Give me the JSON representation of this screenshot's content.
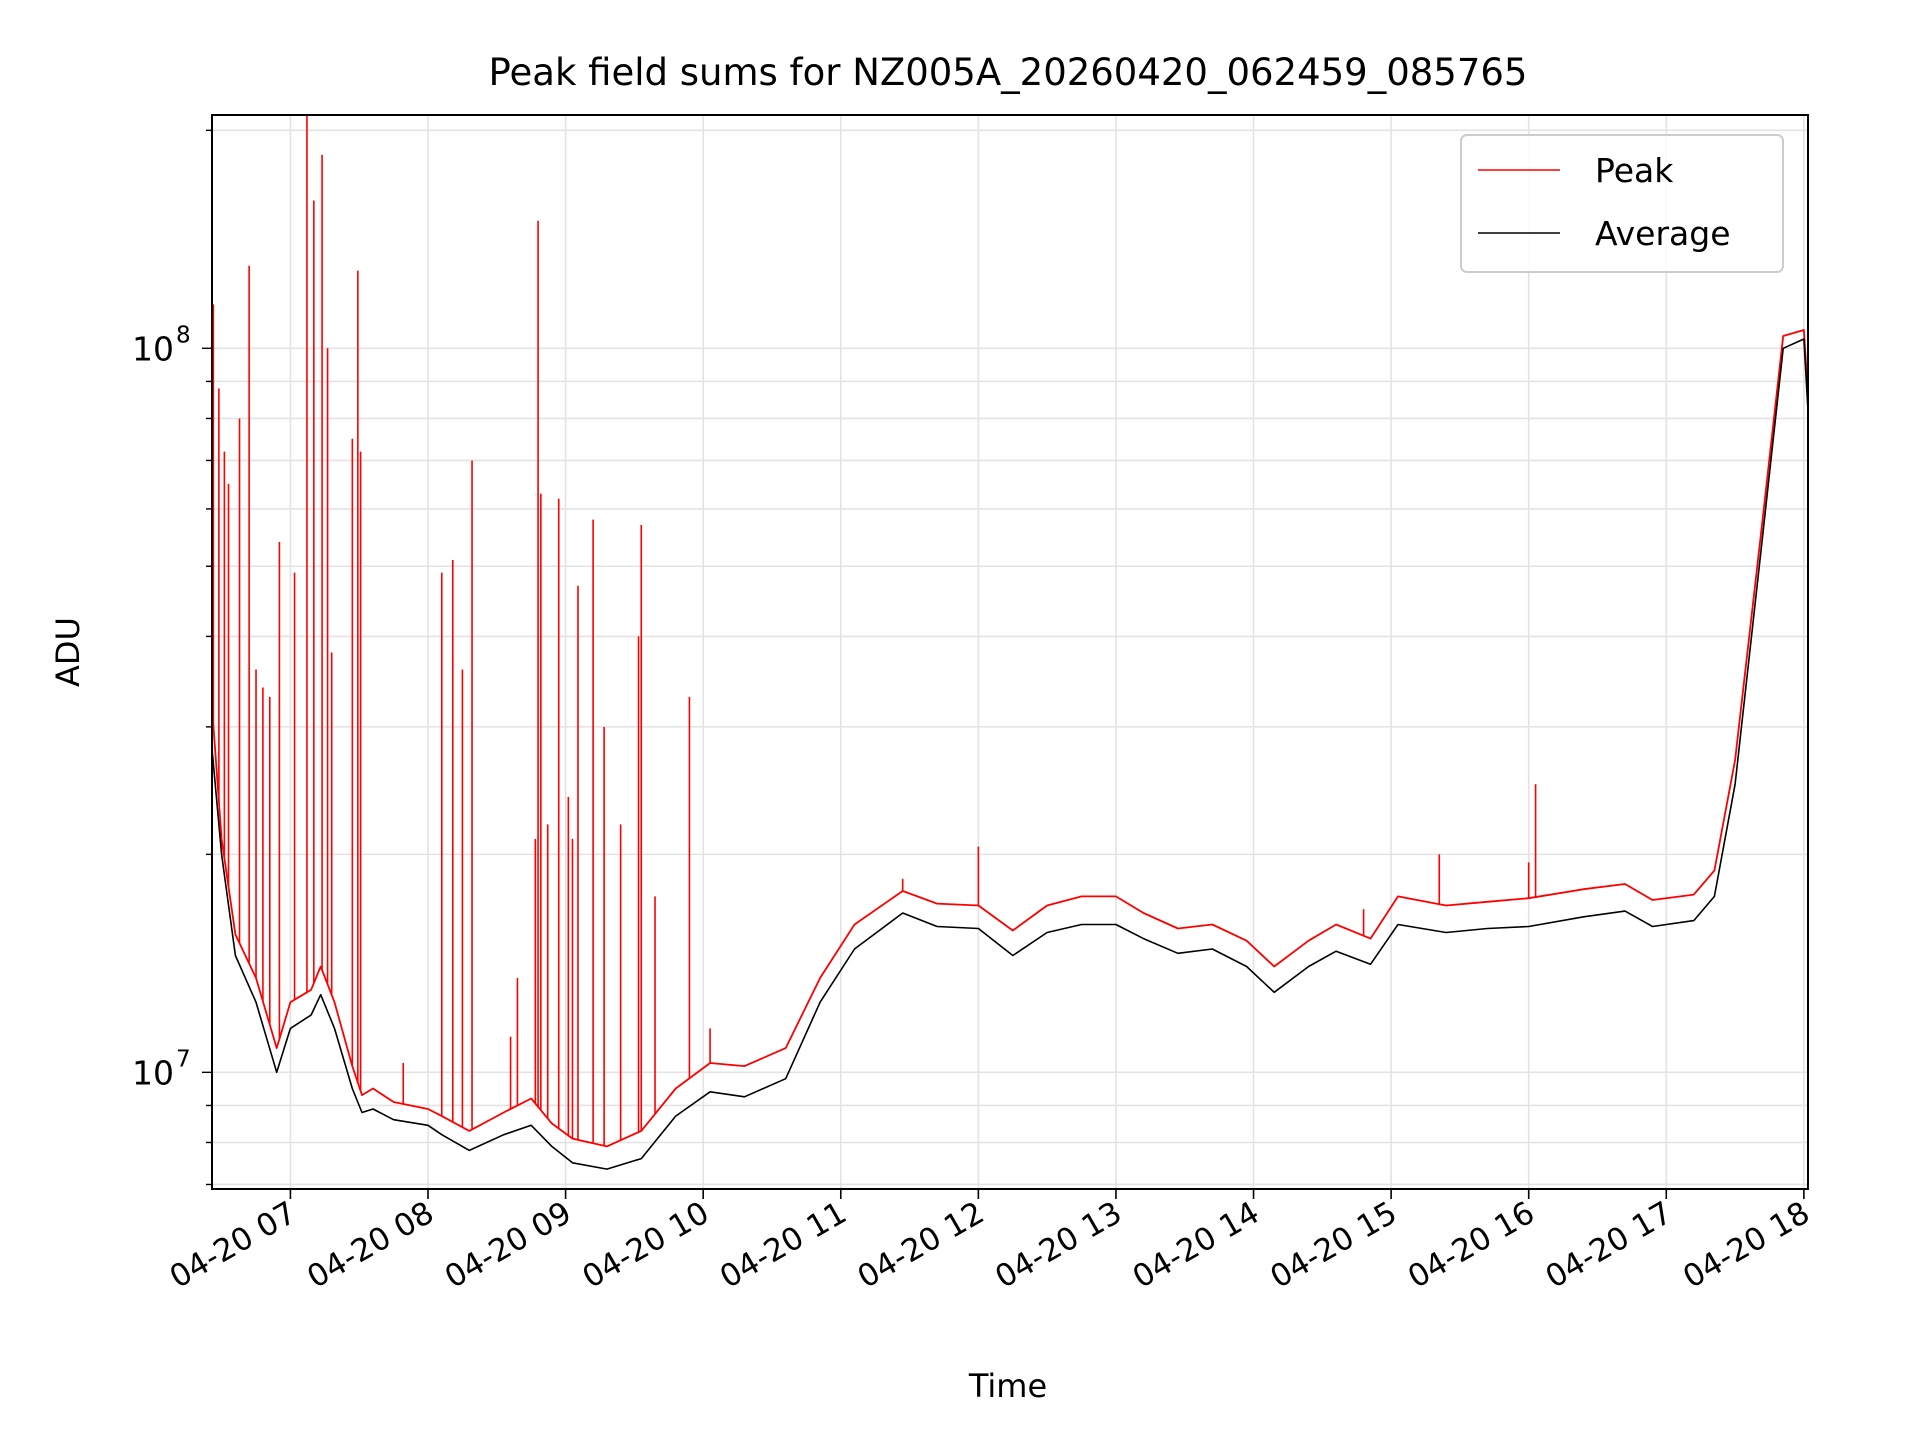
{
  "chart_data": {
    "type": "line",
    "title": "Peak field sums for NZ005A_20260420_062459_085765",
    "xlabel": "Time",
    "ylabel": "ADU",
    "yscale": "log",
    "ylim": [
      6900000,
      210000000
    ],
    "xlim_hours": [
      6.43,
      18.03
    ],
    "x_tick_labels": [
      "04-20 07",
      "04-20 08",
      "04-20 09",
      "04-20 10",
      "04-20 11",
      "04-20 12",
      "04-20 13",
      "04-20 14",
      "04-20 15",
      "04-20 16",
      "04-20 17",
      "04-20 18"
    ],
    "x_tick_hours": [
      7,
      8,
      9,
      10,
      11,
      12,
      13,
      14,
      15,
      16,
      17,
      18
    ],
    "y_tick_labels": [
      {
        "value": 10000000,
        "base": "10",
        "exp": "7"
      },
      {
        "value": 100000000,
        "base": "10",
        "exp": "8"
      }
    ],
    "grid": true,
    "legend_position": "top-right",
    "series": [
      {
        "name": "Average",
        "color": "#000000",
        "points": [
          [
            6.43,
            28000000
          ],
          [
            6.5,
            20000000
          ],
          [
            6.6,
            14500000
          ],
          [
            6.75,
            12500000
          ],
          [
            6.9,
            10000000
          ],
          [
            7.0,
            11500000
          ],
          [
            7.15,
            12000000
          ],
          [
            7.22,
            12800000
          ],
          [
            7.32,
            11500000
          ],
          [
            7.45,
            9500000
          ],
          [
            7.52,
            8800000
          ],
          [
            7.6,
            8900000
          ],
          [
            7.75,
            8600000
          ],
          [
            8.0,
            8450000
          ],
          [
            8.1,
            8200000
          ],
          [
            8.3,
            7800000
          ],
          [
            8.55,
            8200000
          ],
          [
            8.75,
            8450000
          ],
          [
            8.9,
            7900000
          ],
          [
            9.05,
            7500000
          ],
          [
            9.3,
            7350000
          ],
          [
            9.55,
            7600000
          ],
          [
            9.8,
            8700000
          ],
          [
            10.05,
            9400000
          ],
          [
            10.3,
            9250000
          ],
          [
            10.6,
            9800000
          ],
          [
            10.85,
            12500000
          ],
          [
            11.1,
            14800000
          ],
          [
            11.45,
            16600000
          ],
          [
            11.7,
            15900000
          ],
          [
            12.0,
            15800000
          ],
          [
            12.25,
            14500000
          ],
          [
            12.5,
            15600000
          ],
          [
            12.75,
            16000000
          ],
          [
            13.0,
            16000000
          ],
          [
            13.2,
            15300000
          ],
          [
            13.45,
            14600000
          ],
          [
            13.7,
            14800000
          ],
          [
            13.95,
            14000000
          ],
          [
            14.15,
            12900000
          ],
          [
            14.4,
            14000000
          ],
          [
            14.6,
            14700000
          ],
          [
            14.85,
            14100000
          ],
          [
            15.05,
            16000000
          ],
          [
            15.4,
            15600000
          ],
          [
            15.7,
            15800000
          ],
          [
            16.0,
            15900000
          ],
          [
            16.4,
            16400000
          ],
          [
            16.7,
            16700000
          ],
          [
            16.9,
            15900000
          ],
          [
            17.2,
            16200000
          ],
          [
            17.35,
            17500000
          ],
          [
            17.5,
            25000000
          ],
          [
            17.7,
            55000000
          ],
          [
            17.85,
            100000000
          ],
          [
            18.0,
            103000000
          ],
          [
            18.03,
            82000000
          ]
        ]
      },
      {
        "name": "Peak",
        "color": "#ff0000",
        "points": [
          [
            6.43,
            32000000
          ],
          [
            6.5,
            21000000
          ],
          [
            6.6,
            15500000
          ],
          [
            6.75,
            13500000
          ],
          [
            6.9,
            10800000
          ],
          [
            7.0,
            12500000
          ],
          [
            7.15,
            13000000
          ],
          [
            7.22,
            14000000
          ],
          [
            7.32,
            12500000
          ],
          [
            7.45,
            10200000
          ],
          [
            7.52,
            9300000
          ],
          [
            7.6,
            9500000
          ],
          [
            7.75,
            9100000
          ],
          [
            8.0,
            8900000
          ],
          [
            8.1,
            8700000
          ],
          [
            8.3,
            8300000
          ],
          [
            8.55,
            8800000
          ],
          [
            8.75,
            9200000
          ],
          [
            8.9,
            8500000
          ],
          [
            9.05,
            8100000
          ],
          [
            9.3,
            7900000
          ],
          [
            9.55,
            8300000
          ],
          [
            9.8,
            9500000
          ],
          [
            10.05,
            10300000
          ],
          [
            10.3,
            10200000
          ],
          [
            10.6,
            10800000
          ],
          [
            10.85,
            13500000
          ],
          [
            11.1,
            16000000
          ],
          [
            11.45,
            17800000
          ],
          [
            11.7,
            17100000
          ],
          [
            12.0,
            17000000
          ],
          [
            12.25,
            15700000
          ],
          [
            12.5,
            17000000
          ],
          [
            12.75,
            17500000
          ],
          [
            13.0,
            17500000
          ],
          [
            13.2,
            16600000
          ],
          [
            13.45,
            15800000
          ],
          [
            13.7,
            16000000
          ],
          [
            13.95,
            15200000
          ],
          [
            14.15,
            14000000
          ],
          [
            14.4,
            15200000
          ],
          [
            14.6,
            16000000
          ],
          [
            14.85,
            15300000
          ],
          [
            15.05,
            17500000
          ],
          [
            15.4,
            17000000
          ],
          [
            15.7,
            17200000
          ],
          [
            16.0,
            17400000
          ],
          [
            16.4,
            17900000
          ],
          [
            16.7,
            18200000
          ],
          [
            16.9,
            17300000
          ],
          [
            17.2,
            17600000
          ],
          [
            17.35,
            19000000
          ],
          [
            17.5,
            27000000
          ],
          [
            17.7,
            58000000
          ],
          [
            17.85,
            104000000
          ],
          [
            18.0,
            106000000
          ],
          [
            18.03,
            86000000
          ]
        ],
        "spikes": [
          [
            6.44,
            115000000
          ],
          [
            6.48,
            88000000
          ],
          [
            6.52,
            72000000
          ],
          [
            6.55,
            65000000
          ],
          [
            6.63,
            80000000
          ],
          [
            6.7,
            130000000
          ],
          [
            6.75,
            36000000
          ],
          [
            6.8,
            34000000
          ],
          [
            6.85,
            33000000
          ],
          [
            6.92,
            54000000
          ],
          [
            7.03,
            49000000
          ],
          [
            7.12,
            210000000
          ],
          [
            7.17,
            160000000
          ],
          [
            7.23,
            185000000
          ],
          [
            7.27,
            100000000
          ],
          [
            7.3,
            38000000
          ],
          [
            7.45,
            75000000
          ],
          [
            7.49,
            128000000
          ],
          [
            7.51,
            72000000
          ],
          [
            7.82,
            10300000
          ],
          [
            8.1,
            49000000
          ],
          [
            8.18,
            51000000
          ],
          [
            8.25,
            36000000
          ],
          [
            8.32,
            70000000
          ],
          [
            8.6,
            11200000
          ],
          [
            8.65,
            13500000
          ],
          [
            8.78,
            21000000
          ],
          [
            8.8,
            150000000
          ],
          [
            8.82,
            63000000
          ],
          [
            8.87,
            22000000
          ],
          [
            8.95,
            62000000
          ],
          [
            9.02,
            24000000
          ],
          [
            9.05,
            21000000
          ],
          [
            9.09,
            47000000
          ],
          [
            9.2,
            58000000
          ],
          [
            9.28,
            30000000
          ],
          [
            9.4,
            22000000
          ],
          [
            9.53,
            40000000
          ],
          [
            9.55,
            57000000
          ],
          [
            9.65,
            17500000
          ],
          [
            9.9,
            33000000
          ],
          [
            10.05,
            11500000
          ],
          [
            11.45,
            18500000
          ],
          [
            12.0,
            20500000
          ],
          [
            14.8,
            16800000
          ],
          [
            15.35,
            20000000
          ],
          [
            16.0,
            19500000
          ],
          [
            16.05,
            25000000
          ]
        ]
      }
    ]
  }
}
